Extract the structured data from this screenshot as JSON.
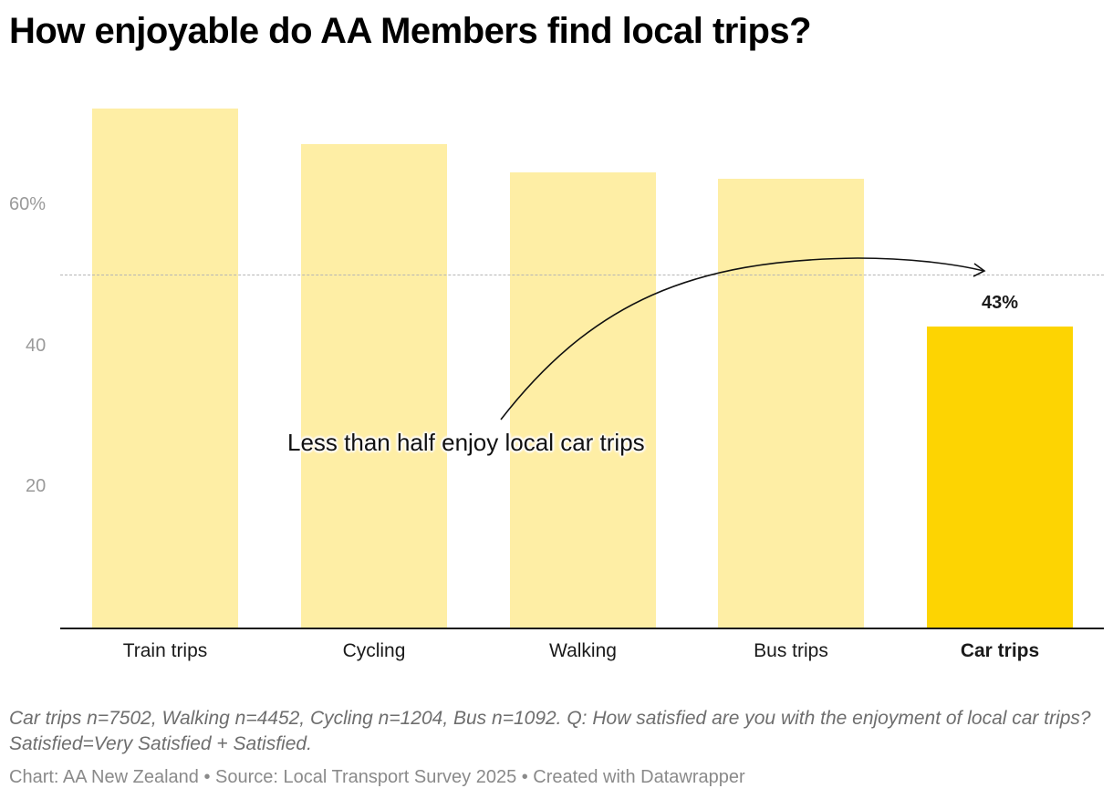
{
  "title": "How enjoyable do AA Members find local trips?",
  "colors": {
    "bar_default": "#FEEEA5",
    "bar_highlight": "#FDD402",
    "axis": "#1a1a1a",
    "reference_line": "#b5b5b5",
    "tick_label": "#9a9a9a"
  },
  "y_axis": {
    "ticks": [
      {
        "value": 60,
        "label": "60%"
      },
      {
        "value": 40,
        "label": "40"
      },
      {
        "value": 20,
        "label": "20"
      }
    ]
  },
  "bars": [
    {
      "label": "Train trips",
      "value": 74,
      "highlight": false
    },
    {
      "label": "Cycling",
      "value": 69,
      "highlight": false
    },
    {
      "label": "Walking",
      "value": 65,
      "highlight": false
    },
    {
      "label": "Bus trips",
      "value": 64,
      "highlight": false
    },
    {
      "label": "Car trips",
      "value": 43,
      "highlight": true,
      "value_label": "43%"
    }
  ],
  "reference_line": {
    "value": 50,
    "style": "dashed"
  },
  "annotation": {
    "text": "Less than half enjoy local car trips"
  },
  "notes": "Car trips n=7502, Walking n=4452, Cycling n=1204, Bus n=1092. Q: How satisfied are you with the enjoyment of local car trips? Satisfied=Very Satisfied + Satisfied.",
  "source": "Chart: AA New Zealand • Source: Local Transport Survey 2025 • Created with Datawrapper",
  "chart_data": {
    "type": "bar",
    "title": "How enjoyable do AA Members find local trips?",
    "categories": [
      "Train trips",
      "Cycling",
      "Walking",
      "Bus trips",
      "Car trips"
    ],
    "values": [
      74,
      69,
      65,
      64,
      43
    ],
    "unit": "%",
    "xlabel": "",
    "ylabel": "",
    "ylim": [
      0,
      75
    ],
    "yticks": [
      20,
      40,
      60
    ],
    "ytick_labels": [
      "20",
      "40",
      "60%"
    ],
    "grid": false,
    "legend": null,
    "highlighted_category": "Car trips",
    "data_labels": [
      {
        "category": "Car trips",
        "label": "43%"
      }
    ],
    "reference_lines": [
      {
        "y": 50,
        "style": "dashed"
      }
    ],
    "annotations": [
      {
        "text": "Less than half enjoy local car trips",
        "arrow_to": "Car trips at 50%"
      }
    ],
    "notes": "Car trips n=7502, Walking n=4452, Cycling n=1204, Bus n=1092. Q: How satisfied are you with the enjoyment of local car trips? Satisfied=Very Satisfied + Satisfied.",
    "source": "Chart: AA New Zealand • Source: Local Transport Survey 2025 • Created with Datawrapper"
  }
}
